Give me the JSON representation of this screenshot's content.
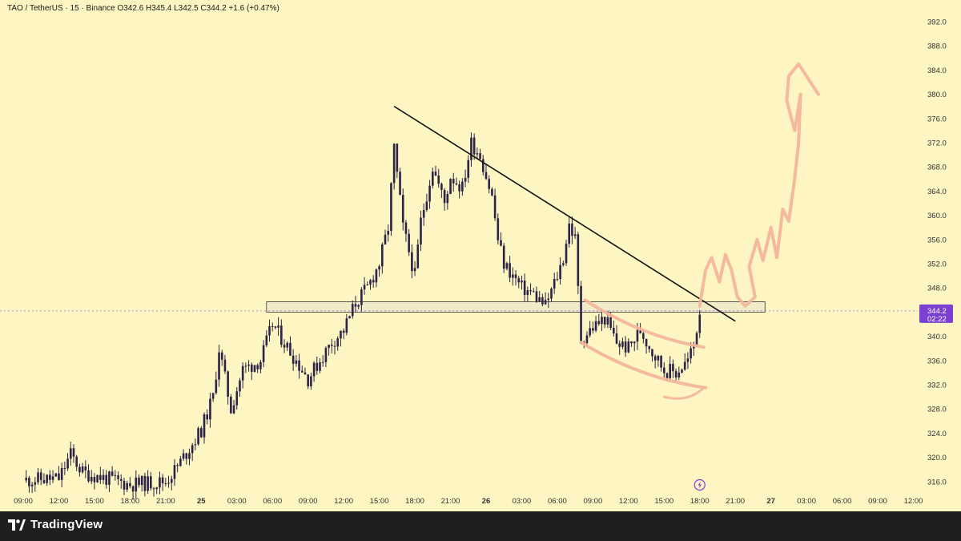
{
  "header": {
    "symbol_line": "TAO / TetherUS · 15 · Binance  O342.6  H345.4  L342.5  C344.2  +1.6 (+0.47%)"
  },
  "footer": {
    "brand": "TradingView",
    "logo_icon": "tradingview-logo-icon"
  },
  "price_badge": {
    "price": "344.2",
    "countdown": "02:22",
    "color": "#7b3fd1"
  },
  "colors": {
    "background": "#fdf5c2",
    "candle": "#2d2347",
    "annotation": "#f4b49a",
    "zone_fill": "#f0e9c8",
    "zone_stroke": "#333333",
    "trendline": "#111111"
  },
  "chart_data": {
    "type": "candlestick",
    "title": "",
    "xlabel": "",
    "ylabel": "",
    "ylim": [
      313.5,
      394.5
    ],
    "y_ticks": [
      "316.0",
      "320.0",
      "324.0",
      "328.0",
      "332.0",
      "336.0",
      "340.0",
      "344.0",
      "348.0",
      "352.0",
      "356.0",
      "360.0",
      "364.0",
      "368.0",
      "372.0",
      "376.0",
      "380.0",
      "384.0",
      "388.0",
      "392.0"
    ],
    "x_ticks": [
      "09:00",
      "12:00",
      "15:00",
      "18:00",
      "21:00",
      "25",
      "03:00",
      "06:00",
      "09:00",
      "12:00",
      "15:00",
      "18:00",
      "21:00",
      "26",
      "03:00",
      "06:00",
      "09:00",
      "12:00",
      "15:00",
      "18:00",
      "21:00",
      "27",
      "03:00",
      "06:00",
      "09:00",
      "12:00"
    ],
    "last_price": 344.2,
    "close_series": [
      {
        "t": "24 09:00",
        "c": 316.2
      },
      {
        "t": "24 12:00",
        "c": 316.5
      },
      {
        "t": "24 13:00",
        "c": 320.5
      },
      {
        "t": "24 14:00",
        "c": 317.5
      },
      {
        "t": "24 18:00",
        "c": 315.5
      },
      {
        "t": "24 21:00",
        "c": 316.0
      },
      {
        "t": "24 22:00",
        "c": 318.5
      },
      {
        "t": "25 00:00",
        "c": 324.5
      },
      {
        "t": "25 01:00",
        "c": 330.0
      },
      {
        "t": "25 01:30",
        "c": 338.0
      },
      {
        "t": "25 02:30",
        "c": 328.0
      },
      {
        "t": "25 03:30",
        "c": 334.5
      },
      {
        "t": "25 05:00",
        "c": 336.0
      },
      {
        "t": "25 06:00",
        "c": 342.0
      },
      {
        "t": "25 08:00",
        "c": 336.0
      },
      {
        "t": "25 09:00",
        "c": 333.0
      },
      {
        "t": "25 11:00",
        "c": 339.0
      },
      {
        "t": "25 12:00",
        "c": 341.0
      },
      {
        "t": "25 13:00",
        "c": 345.5
      },
      {
        "t": "25 14:00",
        "c": 348.0
      },
      {
        "t": "25 15:00",
        "c": 352.0
      },
      {
        "t": "25 15:45",
        "c": 358.0
      },
      {
        "t": "25 16:15",
        "c": 371.0
      },
      {
        "t": "25 17:00",
        "c": 358.0
      },
      {
        "t": "25 18:00",
        "c": 350.0
      },
      {
        "t": "25 18:30",
        "c": 359.0
      },
      {
        "t": "25 19:30",
        "c": 368.0
      },
      {
        "t": "25 20:30",
        "c": 362.0
      },
      {
        "t": "25 21:00",
        "c": 366.5
      },
      {
        "t": "25 22:00",
        "c": 364.5
      },
      {
        "t": "25 22:45",
        "c": 372.0
      },
      {
        "t": "25 23:30",
        "c": 370.0
      },
      {
        "t": "26 00:30",
        "c": 363.0
      },
      {
        "t": "26 01:00",
        "c": 356.0
      },
      {
        "t": "26 01:30",
        "c": 352.0
      },
      {
        "t": "26 03:00",
        "c": 348.0
      },
      {
        "t": "26 04:00",
        "c": 347.0
      },
      {
        "t": "26 05:00",
        "c": 345.0
      },
      {
        "t": "26 06:00",
        "c": 350.0
      },
      {
        "t": "26 06:30",
        "c": 353.0
      },
      {
        "t": "26 07:00",
        "c": 358.5
      },
      {
        "t": "26 07:30",
        "c": 356.0
      },
      {
        "t": "26 08:00",
        "c": 339.5
      },
      {
        "t": "26 09:00",
        "c": 341.5
      },
      {
        "t": "26 10:00",
        "c": 343.0
      },
      {
        "t": "26 11:00",
        "c": 339.0
      },
      {
        "t": "26 12:00",
        "c": 338.0
      },
      {
        "t": "26 13:00",
        "c": 341.0
      },
      {
        "t": "26 14:00",
        "c": 337.5
      },
      {
        "t": "26 15:00",
        "c": 334.5
      },
      {
        "t": "26 16:00",
        "c": 334.0
      },
      {
        "t": "26 17:00",
        "c": 336.0
      },
      {
        "t": "26 17:30",
        "c": 338.5
      },
      {
        "t": "26 18:00",
        "c": 344.2
      }
    ],
    "annotations": {
      "trendline": {
        "from": {
          "t": "25 16:15",
          "price": 378.0
        },
        "to": {
          "t": "26 21:00",
          "price": 342.5
        }
      },
      "horizontal_zone": {
        "from": "25 05:30",
        "to": "26 23:30",
        "low": 344.0,
        "high": 345.7
      },
      "channel_lines": "hand-drawn descending channel 26 08:00-18:00",
      "projection": "hand-drawn upward path from 26 18:00 toward 385"
    }
  }
}
